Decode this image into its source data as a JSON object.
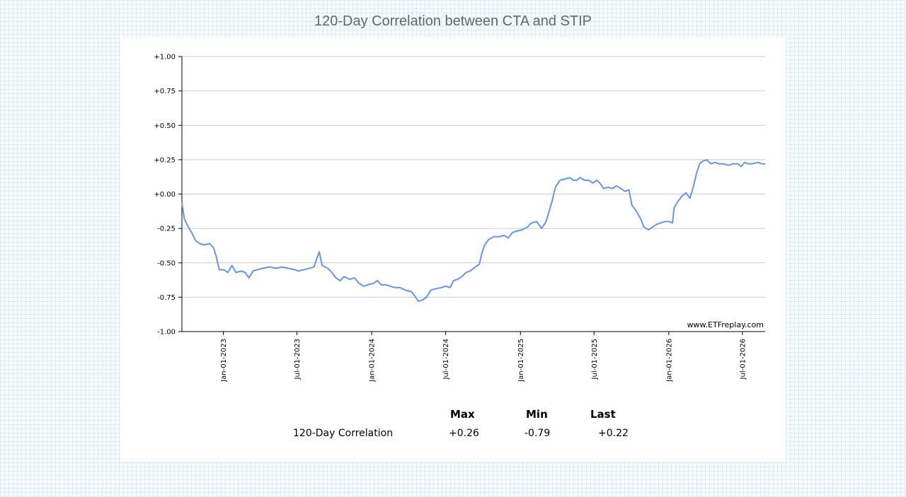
{
  "title": "120-Day Correlation between CTA and STIP",
  "watermark": "www.ETFreplay.com",
  "colors": {
    "line": "#6495ed",
    "grid": "#cccccc",
    "axis": "#000000"
  },
  "chart_data": {
    "type": "line",
    "title": "120-Day Correlation between CTA and STIP",
    "xlabel": "",
    "ylabel": "",
    "ylim": [
      -1.0,
      1.0
    ],
    "xlim": [
      "2022-09-21",
      "2026-08-26"
    ],
    "y_ticks": [
      "+1.00",
      "+0.75",
      "+0.50",
      "+0.25",
      "+0.00",
      "-0.25",
      "-0.50",
      "-0.75",
      "-1.00"
    ],
    "y_tick_values": [
      1.0,
      0.75,
      0.5,
      0.25,
      0.0,
      -0.25,
      -0.5,
      -0.75,
      -1.0
    ],
    "x_ticks": [
      "Jan-01-2023",
      "Jul-01-2023",
      "Jan-01-2024",
      "Jul-01-2024",
      "Jan-01-2025",
      "Jul-01-2025",
      "Jan-01-2026",
      "Jul-01-2026"
    ],
    "x_tick_dates": [
      "2023-01-01",
      "2023-07-01",
      "2024-01-01",
      "2024-07-01",
      "2025-01-01",
      "2025-07-01",
      "2026-01-01",
      "2026-07-01"
    ],
    "grid": true,
    "series": [
      {
        "values": [
          [
            "2022-09-21",
            -0.06
          ],
          [
            "2022-09-27",
            -0.18
          ],
          [
            "2022-10-05",
            -0.23
          ],
          [
            "2022-10-15",
            -0.28
          ],
          [
            "2022-10-25",
            -0.34
          ],
          [
            "2022-11-04",
            -0.36
          ],
          [
            "2022-11-15",
            -0.37
          ],
          [
            "2022-11-28",
            -0.36
          ],
          [
            "2022-12-08",
            -0.39
          ],
          [
            "2022-12-15",
            -0.46
          ],
          [
            "2022-12-22",
            -0.55
          ],
          [
            "2023-01-02",
            -0.55
          ],
          [
            "2023-01-12",
            -0.57
          ],
          [
            "2023-01-22",
            -0.52
          ],
          [
            "2023-02-01",
            -0.57
          ],
          [
            "2023-02-15",
            -0.56
          ],
          [
            "2023-02-24",
            -0.57
          ],
          [
            "2023-03-05",
            -0.61
          ],
          [
            "2023-03-15",
            -0.56
          ],
          [
            "2023-03-25",
            -0.55
          ],
          [
            "2023-04-08",
            -0.54
          ],
          [
            "2023-04-25",
            -0.53
          ],
          [
            "2023-05-10",
            -0.54
          ],
          [
            "2023-05-25",
            -0.53
          ],
          [
            "2023-06-10",
            -0.54
          ],
          [
            "2023-06-25",
            -0.55
          ],
          [
            "2023-07-05",
            -0.56
          ],
          [
            "2023-07-18",
            -0.55
          ],
          [
            "2023-08-01",
            -0.54
          ],
          [
            "2023-08-12",
            -0.53
          ],
          [
            "2023-08-20",
            -0.46
          ],
          [
            "2023-08-25",
            -0.42
          ],
          [
            "2023-09-01",
            -0.52
          ],
          [
            "2023-09-15",
            -0.54
          ],
          [
            "2023-09-25",
            -0.57
          ],
          [
            "2023-10-05",
            -0.61
          ],
          [
            "2023-10-15",
            -0.63
          ],
          [
            "2023-10-25",
            -0.6
          ],
          [
            "2023-11-08",
            -0.62
          ],
          [
            "2023-11-20",
            -0.61
          ],
          [
            "2023-12-01",
            -0.65
          ],
          [
            "2023-12-12",
            -0.67
          ],
          [
            "2023-12-22",
            -0.66
          ],
          [
            "2024-01-05",
            -0.65
          ],
          [
            "2024-01-15",
            -0.63
          ],
          [
            "2024-01-25",
            -0.66
          ],
          [
            "2024-02-05",
            -0.66
          ],
          [
            "2024-02-15",
            -0.67
          ],
          [
            "2024-02-28",
            -0.68
          ],
          [
            "2024-03-10",
            -0.68
          ],
          [
            "2024-03-25",
            -0.7
          ],
          [
            "2024-04-08",
            -0.71
          ],
          [
            "2024-04-18",
            -0.75
          ],
          [
            "2024-04-25",
            -0.78
          ],
          [
            "2024-05-05",
            -0.77
          ],
          [
            "2024-05-15",
            -0.75
          ],
          [
            "2024-05-25",
            -0.7
          ],
          [
            "2024-06-05",
            -0.69
          ],
          [
            "2024-06-20",
            -0.68
          ],
          [
            "2024-07-01",
            -0.67
          ],
          [
            "2024-07-12",
            -0.68
          ],
          [
            "2024-07-20",
            -0.63
          ],
          [
            "2024-07-30",
            -0.62
          ],
          [
            "2024-08-10",
            -0.6
          ],
          [
            "2024-08-20",
            -0.57
          ],
          [
            "2024-08-30",
            -0.56
          ],
          [
            "2024-09-12",
            -0.53
          ],
          [
            "2024-09-22",
            -0.51
          ],
          [
            "2024-09-28",
            -0.43
          ],
          [
            "2024-10-05",
            -0.37
          ],
          [
            "2024-10-15",
            -0.33
          ],
          [
            "2024-10-28",
            -0.31
          ],
          [
            "2024-11-10",
            -0.31
          ],
          [
            "2024-11-22",
            -0.3
          ],
          [
            "2024-12-02",
            -0.32
          ],
          [
            "2024-12-12",
            -0.28
          ],
          [
            "2024-12-22",
            -0.27
          ],
          [
            "2025-01-05",
            -0.26
          ],
          [
            "2025-01-18",
            -0.24
          ],
          [
            "2025-01-28",
            -0.21
          ],
          [
            "2025-02-10",
            -0.2
          ],
          [
            "2025-02-22",
            -0.25
          ],
          [
            "2025-03-05",
            -0.2
          ],
          [
            "2025-03-12",
            -0.13
          ],
          [
            "2025-03-20",
            -0.05
          ],
          [
            "2025-03-28",
            0.05
          ],
          [
            "2025-04-08",
            0.1
          ],
          [
            "2025-04-20",
            0.11
          ],
          [
            "2025-05-02",
            0.12
          ],
          [
            "2025-05-12",
            0.1
          ],
          [
            "2025-05-20",
            0.1
          ],
          [
            "2025-05-28",
            0.12
          ],
          [
            "2025-06-08",
            0.1
          ],
          [
            "2025-06-18",
            0.1
          ],
          [
            "2025-06-28",
            0.08
          ],
          [
            "2025-07-08",
            0.1
          ],
          [
            "2025-07-15",
            0.08
          ],
          [
            "2025-07-25",
            0.04
          ],
          [
            "2025-08-05",
            0.05
          ],
          [
            "2025-08-15",
            0.04
          ],
          [
            "2025-08-25",
            0.06
          ],
          [
            "2025-09-05",
            0.04
          ],
          [
            "2025-09-15",
            0.02
          ],
          [
            "2025-09-25",
            0.03
          ],
          [
            "2025-10-02",
            -0.08
          ],
          [
            "2025-10-12",
            -0.12
          ],
          [
            "2025-10-22",
            -0.17
          ],
          [
            "2025-11-01",
            -0.24
          ],
          [
            "2025-11-12",
            -0.26
          ],
          [
            "2025-11-22",
            -0.24
          ],
          [
            "2025-12-02",
            -0.22
          ],
          [
            "2025-12-12",
            -0.21
          ],
          [
            "2025-12-22",
            -0.2
          ],
          [
            "2026-01-02",
            -0.2
          ],
          [
            "2026-01-10",
            -0.21
          ],
          [
            "2026-01-14",
            -0.1
          ],
          [
            "2026-01-22",
            -0.06
          ],
          [
            "2026-02-01",
            -0.02
          ],
          [
            "2026-02-12",
            0.01
          ],
          [
            "2026-02-22",
            -0.03
          ],
          [
            "2026-03-02",
            0.05
          ],
          [
            "2026-03-10",
            0.15
          ],
          [
            "2026-03-18",
            0.22
          ],
          [
            "2026-03-26",
            0.24
          ],
          [
            "2026-04-05",
            0.25
          ],
          [
            "2026-04-14",
            0.22
          ],
          [
            "2026-04-24",
            0.23
          ],
          [
            "2026-05-05",
            0.22
          ],
          [
            "2026-05-15",
            0.22
          ],
          [
            "2026-05-28",
            0.21
          ],
          [
            "2026-06-08",
            0.22
          ],
          [
            "2026-06-20",
            0.22
          ],
          [
            "2026-06-28",
            0.2
          ],
          [
            "2026-07-06",
            0.23
          ],
          [
            "2026-07-15",
            0.22
          ],
          [
            "2026-07-25",
            0.22
          ],
          [
            "2026-08-08",
            0.23
          ],
          [
            "2026-08-18",
            0.22
          ],
          [
            "2026-08-26",
            0.22
          ]
        ]
      }
    ]
  },
  "stats": {
    "headers": {
      "max": "Max",
      "min": "Min",
      "last": "Last"
    },
    "row_label": "120-Day Correlation",
    "max": "+0.26",
    "min": "-0.79",
    "last": "+0.22"
  }
}
